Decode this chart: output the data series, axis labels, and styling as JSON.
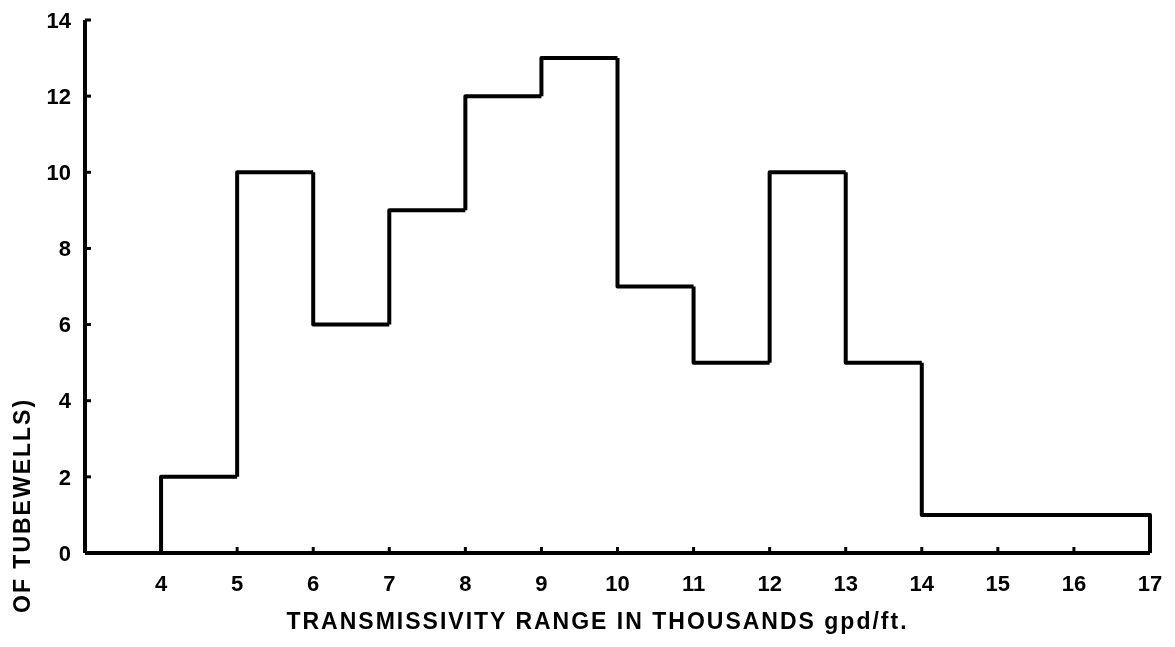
{
  "chart_data": {
    "type": "histogram",
    "xlabel": "TRANSMISSIVITY RANGE IN THOUSANDS gpd/ft.",
    "ylabel": "OF TUBEWELLS)",
    "bins": [
      4,
      5,
      6,
      7,
      8,
      9,
      10,
      11,
      12,
      13,
      14,
      17
    ],
    "values": [
      2,
      10,
      6,
      9,
      12,
      13,
      7,
      5,
      10,
      5,
      1
    ],
    "color": "#000000",
    "xlim": [
      3,
      17
    ],
    "ylim": [
      0,
      14
    ],
    "xticks": [
      4,
      5,
      6,
      7,
      8,
      9,
      10,
      11,
      12,
      13,
      14,
      15,
      16,
      17
    ],
    "yticks": [
      0,
      2,
      4,
      6,
      8,
      10,
      12,
      14
    ],
    "grid": false
  }
}
